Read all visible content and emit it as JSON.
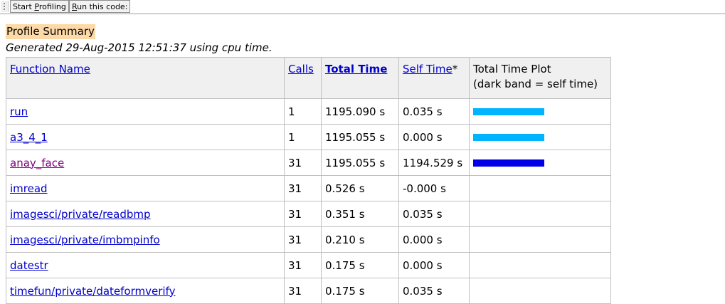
{
  "toolbar": {
    "start_profiling": {
      "pre": "Start ",
      "accel": "P",
      "post": "rofiling"
    },
    "run_code": {
      "pre": "",
      "accel": "R",
      "post": "un this code:"
    }
  },
  "summary": {
    "title": "Profile Summary",
    "generated": "Generated 29-Aug-2015 12:51:37 using cpu time."
  },
  "colors": {
    "total_bar": "#00b4ff",
    "self_bar": "#0000e6",
    "title_highlight": "#fdd9a7"
  },
  "table": {
    "headers": {
      "function_name": "Function Name",
      "calls": "Calls",
      "total_time": "Total Time",
      "self_time": "Self Time",
      "self_time_mark": "*",
      "plot_line1": "Total Time Plot",
      "plot_line2": "(dark band = self time)"
    },
    "rows": [
      {
        "name": "run",
        "calls": "1",
        "total": "1195.090 s",
        "self": "0.035 s",
        "total_frac": 1.0,
        "self_frac": 0.0,
        "visited": false
      },
      {
        "name": "a3_4_1",
        "calls": "1",
        "total": "1195.055 s",
        "self": "0.000 s",
        "total_frac": 1.0,
        "self_frac": 0.0,
        "visited": false
      },
      {
        "name": "anay_face",
        "calls": "31",
        "total": "1195.055 s",
        "self": "1194.529 s",
        "total_frac": 1.0,
        "self_frac": 1.0,
        "visited": true
      },
      {
        "name": "imread",
        "calls": "31",
        "total": "0.526 s",
        "self": "-0.000 s",
        "total_frac": 0.0,
        "self_frac": 0.0,
        "visited": false
      },
      {
        "name": "imagesci/private/readbmp",
        "calls": "31",
        "total": "0.351 s",
        "self": "0.035 s",
        "total_frac": 0.0,
        "self_frac": 0.0,
        "visited": false
      },
      {
        "name": "imagesci/private/imbmpinfo",
        "calls": "31",
        "total": "0.210 s",
        "self": "0.000 s",
        "total_frac": 0.0,
        "self_frac": 0.0,
        "visited": false
      },
      {
        "name": "datestr",
        "calls": "31",
        "total": "0.175 s",
        "self": "0.000 s",
        "total_frac": 0.0,
        "self_frac": 0.0,
        "visited": false
      },
      {
        "name": "timefun/private/dateformverify",
        "calls": "31",
        "total": "0.175 s",
        "self": "0.035 s",
        "total_frac": 0.0,
        "self_frac": 0.0,
        "visited": false
      }
    ]
  }
}
